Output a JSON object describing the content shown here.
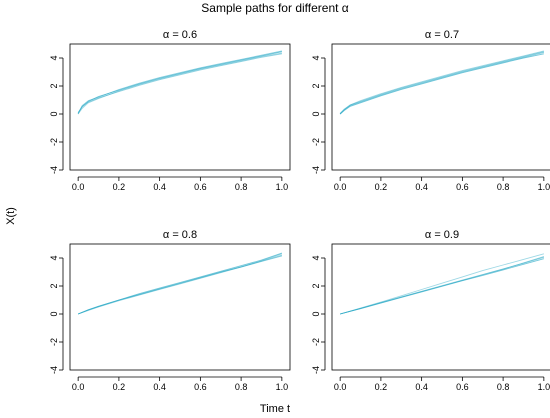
{
  "figure": {
    "title": "Sample paths for different α",
    "xlabel": "Time t",
    "ylabel": "X(t)"
  },
  "chart_data": [
    {
      "type": "line",
      "title": "α = 0.6",
      "alpha": 0.6,
      "xlim": [
        0,
        1
      ],
      "ylim": [
        -4,
        5
      ],
      "x_ticks": [
        "0.0",
        "0.2",
        "0.4",
        "0.6",
        "0.8",
        "1.0"
      ],
      "y_ticks": [
        "-4",
        "-2",
        "0",
        "2",
        "4"
      ],
      "color": "#29a9c6",
      "series": [
        {
          "x": [
            0,
            0.02,
            0.05,
            0.1,
            0.2,
            0.3,
            0.4,
            0.5,
            0.6,
            0.7,
            0.8,
            0.9,
            1.0
          ],
          "y": [
            0.05,
            0.6,
            0.95,
            1.2,
            1.75,
            2.2,
            2.6,
            2.95,
            3.3,
            3.6,
            3.9,
            4.2,
            4.5
          ]
        },
        {
          "x": [
            0,
            0.02,
            0.05,
            0.1,
            0.2,
            0.3,
            0.4,
            0.5,
            0.6,
            0.7,
            0.8,
            0.9,
            1.0
          ],
          "y": [
            0.0,
            0.4,
            0.8,
            1.1,
            1.65,
            2.1,
            2.5,
            2.85,
            3.2,
            3.5,
            3.8,
            4.1,
            4.35
          ]
        },
        {
          "x": [
            0,
            0.02,
            0.05,
            0.1,
            0.2,
            0.3,
            0.4,
            0.5,
            0.6,
            0.7,
            0.8,
            0.9,
            1.0
          ],
          "y": [
            0.1,
            0.5,
            0.9,
            1.25,
            1.7,
            2.15,
            2.55,
            2.9,
            3.25,
            3.55,
            3.85,
            4.15,
            4.45
          ]
        },
        {
          "x": [
            0,
            0.02,
            0.05,
            0.1,
            0.2,
            0.3,
            0.4,
            0.5,
            0.6,
            0.7,
            0.8,
            0.9,
            1.0
          ],
          "y": [
            0.0,
            0.55,
            0.85,
            1.15,
            1.6,
            2.05,
            2.45,
            2.8,
            3.15,
            3.45,
            3.75,
            4.05,
            4.3
          ]
        }
      ]
    },
    {
      "type": "line",
      "title": "α = 0.7",
      "alpha": 0.7,
      "xlim": [
        0,
        1
      ],
      "ylim": [
        -4,
        5
      ],
      "x_ticks": [
        "0.0",
        "0.2",
        "0.4",
        "0.6",
        "0.8",
        "1.0"
      ],
      "y_ticks": [
        "-4",
        "-2",
        "0",
        "2",
        "4"
      ],
      "color": "#29a9c6",
      "series": [
        {
          "x": [
            0,
            0.02,
            0.05,
            0.1,
            0.2,
            0.3,
            0.4,
            0.5,
            0.6,
            0.7,
            0.8,
            0.9,
            1.0
          ],
          "y": [
            0.0,
            0.3,
            0.6,
            0.85,
            1.35,
            1.8,
            2.2,
            2.6,
            3.0,
            3.35,
            3.7,
            4.05,
            4.4
          ]
        },
        {
          "x": [
            0,
            0.02,
            0.05,
            0.1,
            0.2,
            0.3,
            0.4,
            0.5,
            0.6,
            0.7,
            0.8,
            0.9,
            1.0
          ],
          "y": [
            0.05,
            0.35,
            0.65,
            0.95,
            1.45,
            1.9,
            2.3,
            2.7,
            3.1,
            3.45,
            3.8,
            4.15,
            4.5
          ]
        },
        {
          "x": [
            0,
            0.02,
            0.05,
            0.1,
            0.2,
            0.3,
            0.4,
            0.5,
            0.6,
            0.7,
            0.8,
            0.9,
            1.0
          ],
          "y": [
            0.0,
            0.25,
            0.55,
            0.8,
            1.3,
            1.75,
            2.15,
            2.55,
            2.95,
            3.3,
            3.65,
            4.0,
            4.3
          ]
        },
        {
          "x": [
            0,
            0.02,
            0.05,
            0.1,
            0.2,
            0.3,
            0.4,
            0.5,
            0.6,
            0.7,
            0.8,
            0.9,
            1.0
          ],
          "y": [
            0.0,
            0.3,
            0.65,
            0.9,
            1.4,
            1.85,
            2.25,
            2.65,
            3.05,
            3.4,
            3.75,
            4.1,
            4.45
          ]
        }
      ]
    },
    {
      "type": "line",
      "title": "α = 0.8",
      "alpha": 0.8,
      "xlim": [
        0,
        1
      ],
      "ylim": [
        -4,
        5
      ],
      "x_ticks": [
        "0.0",
        "0.2",
        "0.4",
        "0.6",
        "0.8",
        "1.0"
      ],
      "y_ticks": [
        "-4",
        "-2",
        "0",
        "2",
        "4"
      ],
      "color": "#29a9c6",
      "series": [
        {
          "x": [
            0,
            0.05,
            0.1,
            0.2,
            0.3,
            0.4,
            0.5,
            0.6,
            0.7,
            0.8,
            0.9,
            1.0
          ],
          "y": [
            0.0,
            0.3,
            0.55,
            1.0,
            1.4,
            1.8,
            2.2,
            2.6,
            3.0,
            3.35,
            3.75,
            4.15
          ]
        },
        {
          "x": [
            0,
            0.05,
            0.1,
            0.2,
            0.3,
            0.4,
            0.5,
            0.6,
            0.7,
            0.8,
            0.9,
            1.0
          ],
          "y": [
            0.0,
            0.25,
            0.5,
            0.95,
            1.35,
            1.75,
            2.15,
            2.55,
            2.95,
            3.35,
            3.8,
            4.3
          ]
        },
        {
          "x": [
            0,
            0.05,
            0.1,
            0.2,
            0.3,
            0.4,
            0.5,
            0.6,
            0.7,
            0.8,
            0.9,
            1.0
          ],
          "y": [
            0.0,
            0.3,
            0.55,
            1.0,
            1.45,
            1.85,
            2.25,
            2.65,
            3.05,
            3.45,
            3.85,
            4.35
          ]
        },
        {
          "x": [
            0,
            0.05,
            0.1,
            0.2,
            0.3,
            0.4,
            0.5,
            0.6,
            0.7,
            0.8,
            0.9,
            1.0
          ],
          "y": [
            0.0,
            0.28,
            0.52,
            0.98,
            1.38,
            1.78,
            2.18,
            2.58,
            2.98,
            3.38,
            3.78,
            4.2
          ]
        }
      ]
    },
    {
      "type": "line",
      "title": "α = 0.9",
      "alpha": 0.9,
      "xlim": [
        0,
        1
      ],
      "ylim": [
        -4,
        5
      ],
      "x_ticks": [
        "0.0",
        "0.2",
        "0.4",
        "0.6",
        "0.8",
        "1.0"
      ],
      "y_ticks": [
        "-4",
        "-2",
        "0",
        "2",
        "4"
      ],
      "color": "#29a9c6",
      "series": [
        {
          "x": [
            0,
            0.1,
            0.2,
            0.3,
            0.4,
            0.5,
            0.6,
            0.7,
            0.8,
            0.9,
            1.0
          ],
          "y": [
            0.0,
            0.4,
            0.8,
            1.2,
            1.6,
            2.0,
            2.4,
            2.8,
            3.2,
            3.65,
            4.1
          ]
        },
        {
          "x": [
            0,
            0.1,
            0.2,
            0.3,
            0.4,
            0.5,
            0.6,
            0.7,
            0.8,
            0.9,
            1.0
          ],
          "y": [
            0.0,
            0.42,
            0.85,
            1.3,
            1.75,
            2.2,
            2.65,
            3.1,
            3.5,
            3.9,
            4.3
          ]
        },
        {
          "x": [
            0,
            0.1,
            0.2,
            0.3,
            0.4,
            0.5,
            0.6,
            0.7,
            0.8,
            0.9,
            1.0
          ],
          "y": [
            0.0,
            0.38,
            0.78,
            1.18,
            1.58,
            1.98,
            2.38,
            2.75,
            3.15,
            3.55,
            3.95
          ]
        },
        {
          "x": [
            0,
            0.1,
            0.2,
            0.3,
            0.4,
            0.5,
            0.6,
            0.7,
            0.8,
            0.9,
            1.0
          ],
          "y": [
            0.0,
            0.4,
            0.82,
            1.22,
            1.62,
            2.02,
            2.42,
            2.82,
            3.22,
            3.62,
            4.05
          ]
        }
      ]
    }
  ]
}
